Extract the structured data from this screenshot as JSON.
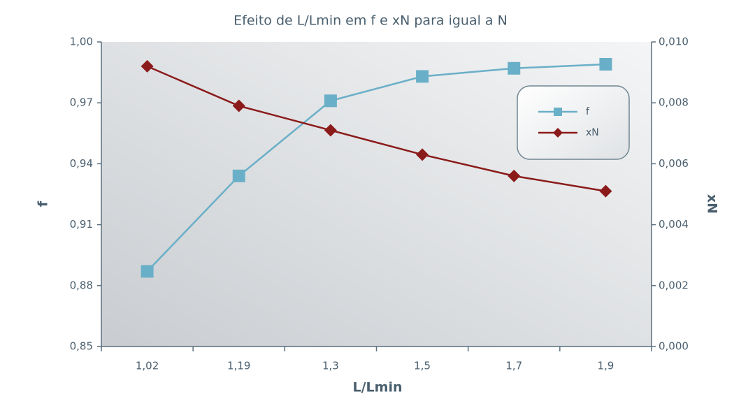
{
  "chart_data": {
    "type": "line",
    "title": "Efeito de L/Lmin em f e xN para igual a N",
    "x_label": "L/Lmin",
    "y_label": "f",
    "y2_label": "xN",
    "categories": [
      "1,02",
      "1,19",
      "1,3",
      "1,5",
      "1,7",
      "1,9"
    ],
    "series": [
      {
        "name": "f",
        "color": "#6aafc8",
        "marker": "square",
        "values": [
          0.887,
          0.934,
          0.971,
          0.983,
          0.987,
          0.989
        ]
      },
      {
        "name": "xN",
        "color": "#8b1a1a",
        "marker": "diamond",
        "axis": "y2",
        "values": [
          0.0092,
          0.0079,
          0.0071,
          0.0063,
          0.0056,
          0.0051
        ]
      }
    ],
    "ylim": [
      0.85,
      1.0
    ],
    "yticks": [
      {
        "value": 0.85,
        "label": "0,85"
      },
      {
        "value": 0.88,
        "label": "0,88"
      },
      {
        "value": 0.91,
        "label": "0,91"
      },
      {
        "value": 0.94,
        "label": "0,94"
      },
      {
        "value": 0.97,
        "label": "0,97"
      },
      {
        "value": 1.0,
        "label": "1,00"
      }
    ],
    "y2lim": [
      0,
      0.01
    ],
    "y2ticks": [
      {
        "value": 0,
        "label": "0,000"
      },
      {
        "value": 0.002,
        "label": "0,002"
      },
      {
        "value": 0.004,
        "label": "0,004"
      },
      {
        "value": 0.006,
        "label": "0,006"
      },
      {
        "value": 0.008,
        "label": "0,008"
      },
      {
        "value": 0.01,
        "label": "0,010"
      }
    ],
    "legend": "upper right"
  }
}
